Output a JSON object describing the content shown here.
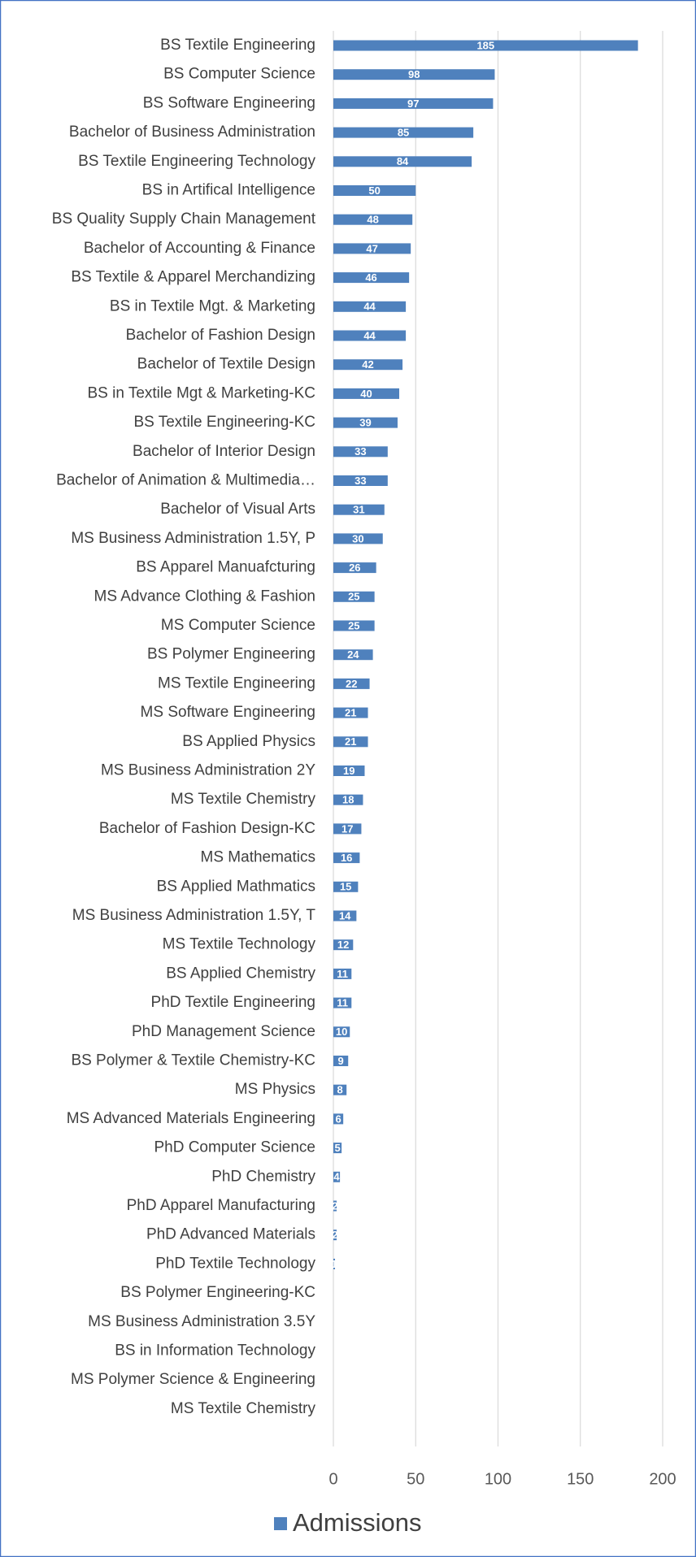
{
  "chart_data": {
    "type": "bar",
    "orientation": "horizontal",
    "categories": [
      "BS Textile Engineering",
      "BS Computer Science",
      "BS Software Engineering",
      "Bachelor of Business Administration",
      "BS Textile Engineering Technology",
      "BS in Artifical Intelligence",
      "BS Quality Supply Chain Management",
      "Bachelor of Accounting & Finance",
      "BS Textile & Apparel Merchandizing",
      "BS in Textile Mgt. & Marketing",
      "Bachelor of Fashion Design",
      "Bachelor of Textile Design",
      "BS in Textile Mgt & Marketing-KC",
      "BS Textile Engineering-KC",
      "Bachelor of Interior Design",
      "Bachelor of Animation & Multimedia…",
      "Bachelor of Visual Arts",
      "MS Business Administration 1.5Y, P",
      "BS Apparel Manuafcturing",
      "MS Advance Clothing & Fashion",
      "MS Computer Science",
      "BS Polymer Engineering",
      "MS Textile Engineering",
      "MS Software Engineering",
      "BS Applied Physics",
      "MS Business Administration 2Y",
      "MS Textile Chemistry",
      "Bachelor of Fashion Design-KC",
      "MS Mathematics",
      "BS Applied Mathmatics",
      "MS Business Administration 1.5Y, T",
      "MS Textile Technology",
      "BS Applied Chemistry",
      "PhD Textile Engineering",
      "PhD Management Science",
      "BS Polymer & Textile Chemistry-KC",
      "MS Physics",
      "MS Advanced Materials Engineering",
      "PhD Computer Science",
      "PhD Chemistry",
      "PhD Apparel Manufacturing",
      "PhD Advanced Materials",
      "PhD Textile Technology",
      "BS Polymer Engineering-KC",
      "MS Business Administration 3.5Y",
      "BS in Information Technology",
      "MS Polymer Science & Engineering",
      "MS Textile Chemistry"
    ],
    "series": [
      {
        "name": "Admissions",
        "color": "#4f81bd",
        "values": [
          185,
          98,
          97,
          85,
          84,
          50,
          48,
          47,
          46,
          44,
          44,
          42,
          40,
          39,
          33,
          33,
          31,
          30,
          26,
          25,
          25,
          24,
          22,
          21,
          21,
          19,
          18,
          17,
          16,
          15,
          14,
          12,
          11,
          11,
          10,
          9,
          8,
          6,
          5,
          4,
          2,
          2,
          1,
          0,
          0,
          0,
          0,
          0
        ]
      }
    ],
    "xlim": [
      0,
      200
    ],
    "xticks": [
      0,
      50,
      100,
      150,
      200
    ],
    "grid": true,
    "legend": "bottom"
  }
}
